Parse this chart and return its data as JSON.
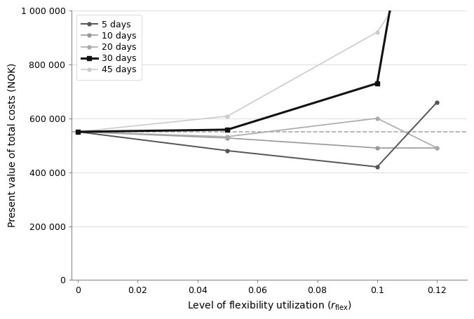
{
  "series": [
    {
      "label": "5 days",
      "x": [
        0,
        0.05,
        0.1,
        0.12
      ],
      "y": [
        550000,
        480000,
        420000,
        660000
      ],
      "color": "#555555",
      "linewidth": 1.4,
      "marker": "o",
      "markersize": 3.5,
      "linestyle": "-",
      "zorder": 4
    },
    {
      "label": "10 days",
      "x": [
        0,
        0.05,
        0.1,
        0.12
      ],
      "y": [
        550000,
        527000,
        490000,
        490000
      ],
      "color": "#999999",
      "linewidth": 1.2,
      "marker": "o",
      "markersize": 3.5,
      "linestyle": "-",
      "zorder": 3
    },
    {
      "label": "20 days",
      "x": [
        0,
        0.05,
        0.1,
        0.12
      ],
      "y": [
        550000,
        532000,
        600000,
        490000
      ],
      "color": "#aaaaaa",
      "linewidth": 1.2,
      "marker": "o",
      "markersize": 3.5,
      "linestyle": "-",
      "zorder": 3
    },
    {
      "label": "30 days",
      "x": [
        0,
        0.05,
        0.1,
        0.105
      ],
      "y": [
        550000,
        558000,
        730000,
        1050000
      ],
      "color": "#111111",
      "linewidth": 2.2,
      "marker": "s",
      "markersize": 4,
      "linestyle": "-",
      "zorder": 5
    },
    {
      "label": "45 days",
      "x": [
        0,
        0.05,
        0.1,
        0.108
      ],
      "y": [
        550000,
        608000,
        920000,
        1050000
      ],
      "color": "#cccccc",
      "linewidth": 1.2,
      "marker": "o",
      "markersize": 3.5,
      "linestyle": "-",
      "zorder": 2
    }
  ],
  "dashed_line": {
    "y": 550000,
    "color": "#aaaaaa",
    "linestyle": "--",
    "linewidth": 1.2,
    "zorder": 1
  },
  "xlim": [
    -0.002,
    0.13
  ],
  "ylim": [
    0,
    1000000
  ],
  "xticks": [
    0,
    0.02,
    0.04,
    0.06,
    0.08,
    0.1,
    0.12
  ],
  "xtick_labels": [
    "0",
    "0.02",
    "0.04",
    "0.06",
    "0.08",
    "0.1",
    "0.12"
  ],
  "yticks": [
    0,
    200000,
    400000,
    600000,
    800000,
    1000000
  ],
  "ytick_labels": [
    "0",
    "200 000",
    "400 000",
    "600 000",
    "800 000",
    "1 000 000"
  ],
  "xlabel": "Level of flexibility utilization ($r_{\\mathrm{flex}}$)",
  "ylabel": "Present value of total costs (NOK)",
  "background_color": "#ffffff",
  "grid_color": "#dddddd",
  "figsize": [
    6.76,
    4.55
  ],
  "dpi": 100
}
